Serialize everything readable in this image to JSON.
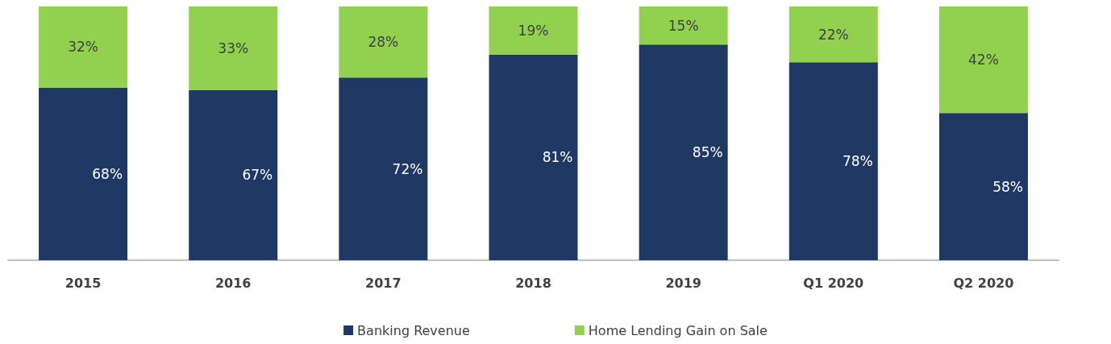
{
  "chart_data": {
    "type": "bar",
    "stacked": true,
    "categories": [
      "2015",
      "2016",
      "2017",
      "2018",
      "2019",
      "Q1 2020",
      "Q2 2020"
    ],
    "series": [
      {
        "name": "Banking Revenue",
        "color": "#1f3864",
        "values": [
          68,
          67,
          72,
          81,
          85,
          78,
          58
        ],
        "value_labels": [
          "68%",
          "67%",
          "72%",
          "81%",
          "85%",
          "78%",
          "58%"
        ]
      },
      {
        "name": "Home Lending Gain on Sale",
        "color": "#92d050",
        "values": [
          32,
          33,
          28,
          19,
          15,
          22,
          42
        ],
        "value_labels": [
          "32%",
          "33%",
          "28%",
          "19%",
          "15%",
          "22%",
          "42%"
        ]
      }
    ],
    "ylim": [
      0,
      100
    ],
    "tick_labels": "x",
    "legend": "bottom"
  }
}
